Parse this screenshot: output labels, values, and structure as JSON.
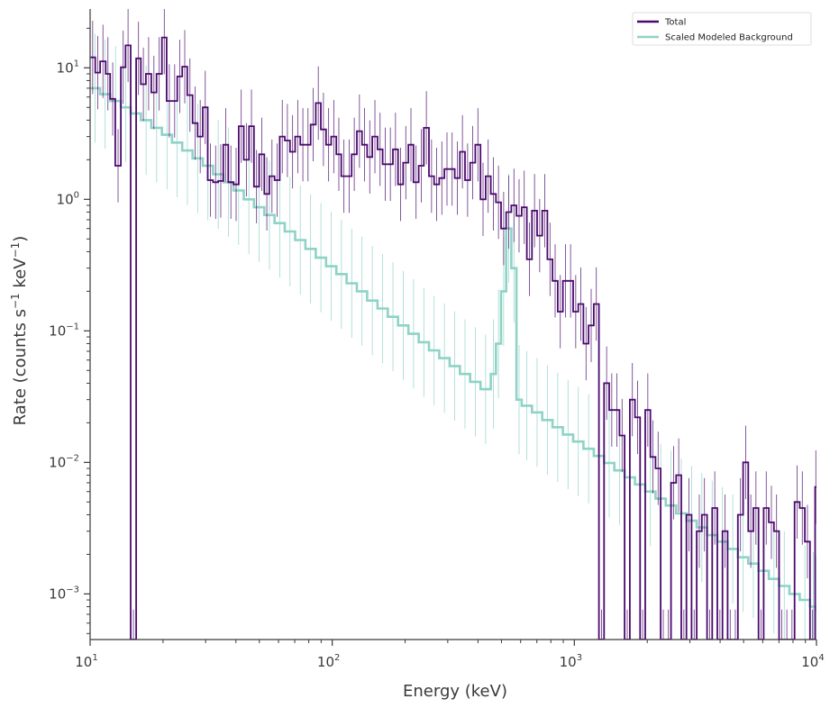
{
  "chart_data": {
    "type": "line",
    "xlabel": "Energy (keV)",
    "ylabel_parts": [
      "Rate (counts s",
      "−1",
      " keV",
      "−1",
      ")"
    ],
    "xscale": "log",
    "yscale": "log",
    "xlim": [
      10,
      10000
    ],
    "ylim": [
      0.00045,
      28
    ],
    "x_tick_labels": [
      {
        "value": 10,
        "base": "10",
        "exp": "1"
      },
      {
        "value": 100,
        "base": "10",
        "exp": "2"
      },
      {
        "value": 1000,
        "base": "10",
        "exp": "3"
      },
      {
        "value": 10000,
        "base": "10",
        "exp": "4"
      }
    ],
    "y_tick_labels": [
      {
        "value": 10,
        "base": "10",
        "exp": "1"
      },
      {
        "value": 1,
        "base": "10",
        "exp": "0"
      },
      {
        "value": 0.1,
        "base": "10",
        "exp": "−1"
      },
      {
        "value": 0.01,
        "base": "10",
        "exp": "−2"
      },
      {
        "value": 0.001,
        "base": "10",
        "exp": "−3"
      }
    ],
    "grid": false,
    "legend_position": "top-right",
    "series": [
      {
        "name": "Total",
        "color": "#4b0a6e",
        "points": [
          [
            10.0,
            12.0
          ],
          [
            10.5,
            9.2
          ],
          [
            11.0,
            11.2
          ],
          [
            11.6,
            9.0
          ],
          [
            12.1,
            5.8
          ],
          [
            12.7,
            1.8
          ],
          [
            13.4,
            10.1
          ],
          [
            14.0,
            14.8
          ],
          [
            14.7,
            0.0004
          ],
          [
            15.5,
            11.8
          ],
          [
            16.2,
            7.5
          ],
          [
            17.0,
            9.0
          ],
          [
            17.9,
            6.5
          ],
          [
            18.8,
            9.0
          ],
          [
            19.8,
            17.0
          ],
          [
            20.7,
            5.6
          ],
          [
            21.8,
            5.6
          ],
          [
            22.9,
            8.6
          ],
          [
            24.0,
            10.2
          ],
          [
            25.2,
            6.2
          ],
          [
            26.5,
            3.8
          ],
          [
            27.8,
            3.0
          ],
          [
            29.2,
            5.0
          ],
          [
            30.6,
            1.4
          ],
          [
            32.2,
            1.35
          ],
          [
            33.8,
            1.38
          ],
          [
            35.5,
            2.6
          ],
          [
            37.2,
            1.35
          ],
          [
            39.1,
            1.3
          ],
          [
            41.1,
            3.6
          ],
          [
            43.1,
            2.0
          ],
          [
            45.3,
            3.6
          ],
          [
            47.5,
            1.25
          ],
          [
            49.9,
            2.2
          ],
          [
            52.4,
            1.1
          ],
          [
            55.0,
            1.5
          ],
          [
            57.8,
            1.4
          ],
          [
            60.7,
            3.0
          ],
          [
            63.7,
            2.8
          ],
          [
            66.9,
            2.3
          ],
          [
            70.3,
            3.0
          ],
          [
            73.8,
            2.6
          ],
          [
            77.5,
            2.6
          ],
          [
            81.4,
            3.7
          ],
          [
            85.5,
            5.4
          ],
          [
            89.7,
            3.4
          ],
          [
            94.3,
            2.6
          ],
          [
            99.0,
            3.0
          ],
          [
            104.0,
            2.2
          ],
          [
            109.0,
            1.5
          ],
          [
            114.6,
            1.5
          ],
          [
            120.3,
            2.2
          ],
          [
            126.4,
            3.3
          ],
          [
            132.7,
            2.6
          ],
          [
            139.4,
            2.1
          ],
          [
            146.4,
            3.0
          ],
          [
            153.8,
            2.4
          ],
          [
            161.5,
            1.85
          ],
          [
            169.6,
            1.85
          ],
          [
            178.1,
            2.4
          ],
          [
            187.0,
            1.3
          ],
          [
            196.4,
            1.9
          ],
          [
            206.3,
            2.6
          ],
          [
            216.6,
            1.35
          ],
          [
            227.5,
            1.8
          ],
          [
            238.9,
            3.5
          ],
          [
            250.9,
            1.5
          ],
          [
            263.5,
            1.3
          ],
          [
            276.7,
            1.45
          ],
          [
            290.6,
            1.7
          ],
          [
            305.2,
            1.7
          ],
          [
            320.5,
            1.45
          ],
          [
            336.6,
            2.3
          ],
          [
            353.5,
            1.4
          ],
          [
            371.3,
            1.9
          ],
          [
            389.9,
            2.6
          ],
          [
            409.5,
            1.0
          ],
          [
            430.0,
            1.5
          ],
          [
            451.6,
            1.1
          ],
          [
            474.3,
            0.95
          ],
          [
            498.1,
            0.6
          ],
          [
            523.1,
            0.8
          ],
          [
            549.3,
            0.9
          ],
          [
            576.9,
            0.75
          ],
          [
            605.8,
            0.87
          ],
          [
            636.2,
            0.35
          ],
          [
            668.2,
            0.82
          ],
          [
            701.7,
            0.53
          ],
          [
            736.9,
            0.82
          ],
          [
            773.9,
            0.35
          ],
          [
            812.8,
            0.24
          ],
          [
            853.6,
            0.14
          ],
          [
            896.4,
            0.24
          ],
          [
            941.4,
            0.24
          ],
          [
            988.6,
            0.14
          ],
          [
            1038.2,
            0.16
          ],
          [
            1090.4,
            0.08
          ],
          [
            1145.1,
            0.11
          ],
          [
            1202.6,
            0.16
          ],
          [
            1263.0,
            0.0004
          ],
          [
            1326.3,
            0.04
          ],
          [
            1392.9,
            0.025
          ],
          [
            1462.8,
            0.025
          ],
          [
            1536.2,
            0.016
          ],
          [
            1613.3,
            0.0004
          ],
          [
            1694.3,
            0.03
          ],
          [
            1779.3,
            0.022
          ],
          [
            1868.6,
            0.0004
          ],
          [
            1962.4,
            0.025
          ],
          [
            2060.9,
            0.011
          ],
          [
            2164.3,
            0.009
          ],
          [
            2272.9,
            0.0004
          ],
          [
            2387.0,
            0.0004
          ],
          [
            2506.8,
            0.007
          ],
          [
            2632.6,
            0.008
          ],
          [
            2764.7,
            0.0004
          ],
          [
            2903.4,
            0.004
          ],
          [
            3049.1,
            0.0004
          ],
          [
            3202.2,
            0.003
          ],
          [
            3362.9,
            0.004
          ],
          [
            3531.6,
            0.0004
          ],
          [
            3708.9,
            0.0045
          ],
          [
            3895.0,
            0.0004
          ],
          [
            4090.5,
            0.003
          ],
          [
            4295.8,
            0.0004
          ],
          [
            4511.4,
            0.0004
          ],
          [
            4737.8,
            0.004
          ],
          [
            4975.6,
            0.01
          ],
          [
            5225.3,
            0.003
          ],
          [
            5487.5,
            0.0045
          ],
          [
            5762.9,
            0.0004
          ],
          [
            6052.2,
            0.0045
          ],
          [
            6355.9,
            0.0035
          ],
          [
            6674.9,
            0.003
          ],
          [
            7009.9,
            0.0004
          ],
          [
            7361.7,
            0.0004
          ],
          [
            7731.2,
            0.0004
          ],
          [
            8119.2,
            0.005
          ],
          [
            8526.7,
            0.0045
          ],
          [
            8954.6,
            0.0025
          ],
          [
            9404.0,
            0.0004
          ],
          [
            9875.9,
            0.0065
          ]
        ]
      },
      {
        "name": "Scaled Modeled Background",
        "color": "#8ed3c6",
        "points": [
          [
            10.0,
            7.0
          ],
          [
            11.0,
            6.3
          ],
          [
            12.1,
            5.6
          ],
          [
            13.4,
            5.0
          ],
          [
            14.7,
            4.5
          ],
          [
            16.2,
            4.0
          ],
          [
            17.9,
            3.5
          ],
          [
            19.8,
            3.1
          ],
          [
            21.8,
            2.7
          ],
          [
            24.0,
            2.35
          ],
          [
            26.5,
            2.05
          ],
          [
            29.2,
            1.8
          ],
          [
            32.2,
            1.55
          ],
          [
            35.5,
            1.35
          ],
          [
            39.1,
            1.17
          ],
          [
            43.1,
            1.0
          ],
          [
            47.5,
            0.87
          ],
          [
            52.4,
            0.76
          ],
          [
            57.8,
            0.66
          ],
          [
            63.7,
            0.57
          ],
          [
            70.3,
            0.49
          ],
          [
            77.5,
            0.42
          ],
          [
            85.5,
            0.36
          ],
          [
            94.3,
            0.31
          ],
          [
            104.0,
            0.27
          ],
          [
            114.6,
            0.23
          ],
          [
            126.4,
            0.2
          ],
          [
            139.4,
            0.17
          ],
          [
            153.8,
            0.148
          ],
          [
            169.6,
            0.128
          ],
          [
            187.0,
            0.11
          ],
          [
            206.3,
            0.095
          ],
          [
            227.5,
            0.082
          ],
          [
            250.9,
            0.071
          ],
          [
            276.7,
            0.062
          ],
          [
            305.2,
            0.054
          ],
          [
            336.6,
            0.047
          ],
          [
            371.3,
            0.041
          ],
          [
            409.5,
            0.036
          ],
          [
            451.6,
            0.047
          ],
          [
            474.3,
            0.08
          ],
          [
            498.1,
            0.2
          ],
          [
            523.1,
            0.6
          ],
          [
            549.3,
            0.3
          ],
          [
            576.9,
            0.03
          ],
          [
            605.8,
            0.027
          ],
          [
            668.2,
            0.024
          ],
          [
            736.9,
            0.021
          ],
          [
            812.8,
            0.0185
          ],
          [
            896.4,
            0.0163
          ],
          [
            988.6,
            0.0144
          ],
          [
            1090.4,
            0.0127
          ],
          [
            1202.6,
            0.0112
          ],
          [
            1326.3,
            0.0099
          ],
          [
            1462.8,
            0.0087
          ],
          [
            1613.3,
            0.0077
          ],
          [
            1779.3,
            0.0068
          ],
          [
            1962.4,
            0.006
          ],
          [
            2164.3,
            0.0053
          ],
          [
            2387.0,
            0.0047
          ],
          [
            2632.6,
            0.0041
          ],
          [
            2903.4,
            0.0036
          ],
          [
            3202.2,
            0.0032
          ],
          [
            3531.6,
            0.0028
          ],
          [
            3895.0,
            0.0025
          ],
          [
            4295.8,
            0.0022
          ],
          [
            4737.8,
            0.0019
          ],
          [
            5225.3,
            0.0017
          ],
          [
            5762.9,
            0.0015
          ],
          [
            6355.9,
            0.0013
          ],
          [
            7009.9,
            0.00115
          ],
          [
            7731.2,
            0.001
          ],
          [
            8526.7,
            0.0009
          ],
          [
            9404.0,
            0.0008
          ],
          [
            10000.0,
            0.00075
          ]
        ]
      }
    ]
  }
}
